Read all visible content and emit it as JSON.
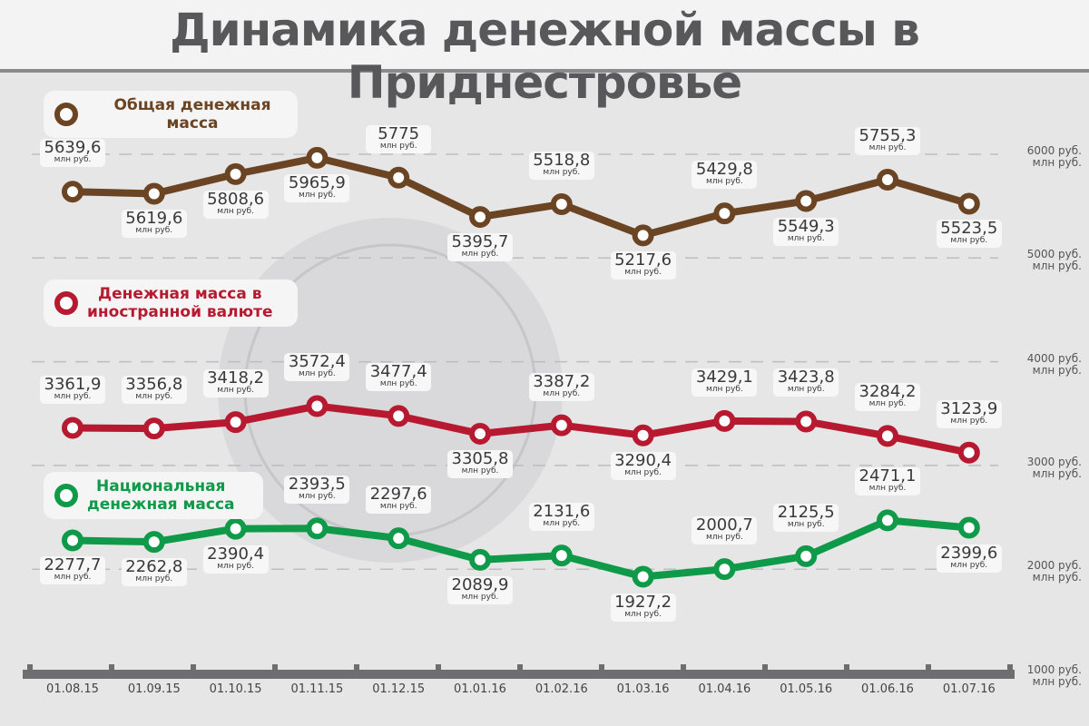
{
  "title": "Динамика денежной массы в Приднестровье",
  "chart_data": {
    "type": "line",
    "title": "Динамика денежной массы в Приднестровье",
    "categories": [
      "01.08.15",
      "01.09.15",
      "01.10.15",
      "01.11.15",
      "01.12.15",
      "01.01.16",
      "01.02.16",
      "01.03.16",
      "01.04.16",
      "01.05.16",
      "01.06.16",
      "01.07.16"
    ],
    "unit": "млн руб.",
    "y_ticks": [
      {
        "value": 1000,
        "label": "1000 руб.",
        "sub": "млн руб."
      },
      {
        "value": 2000,
        "label": "2000 руб.",
        "sub": "млн руб."
      },
      {
        "value": 3000,
        "label": "3000 руб.",
        "sub": "млн руб."
      },
      {
        "value": 4000,
        "label": "4000 руб.",
        "sub": "млн руб."
      },
      {
        "value": 5000,
        "label": "5000 руб.",
        "sub": "млн руб."
      },
      {
        "value": 6000,
        "label": "6000 руб.",
        "sub": "млн руб."
      }
    ],
    "ylim": [
      1000,
      6000
    ],
    "grid": true,
    "series": [
      {
        "name": "Общая денежная масса",
        "color": "#6b4423",
        "values": [
          5639.6,
          5619.6,
          5808.6,
          5965.9,
          5775,
          5395.7,
          5518.8,
          5217.6,
          5429.8,
          5549.3,
          5755.3,
          5523.5
        ],
        "labels": [
          "5639,6",
          "5619,6",
          "5808,6",
          "5965,9",
          "5775",
          "5395,7",
          "5518,8",
          "5217,6",
          "5429,8",
          "5549,3",
          "5755,3",
          "5523,5"
        ]
      },
      {
        "name": "Денежная масса в иностранной валюте",
        "color": "#b71a30",
        "values": [
          3361.9,
          3356.8,
          3418.2,
          3572.4,
          3477.4,
          3305.8,
          3387.2,
          3290.4,
          3429.1,
          3423.8,
          3284.2,
          3123.9
        ],
        "labels": [
          "3361,9",
          "3356,8",
          "3418,2",
          "3572,4",
          "3477,4",
          "3305,8",
          "3387,2",
          "3290,4",
          "3429,1",
          "3423,8",
          "3284,2",
          "3123,9"
        ]
      },
      {
        "name": "Национальная денежная масса",
        "color": "#0e9a48",
        "values": [
          2277.7,
          2262.8,
          2390.4,
          2393.5,
          2297.6,
          2089.9,
          2131.6,
          1927.2,
          2000.7,
          2125.5,
          2471.1,
          2399.6
        ],
        "labels": [
          "2277,7",
          "2262,8",
          "2390,4",
          "2393,5",
          "2297,6",
          "2089,9",
          "2131,6",
          "1927,2",
          "2000,7",
          "2125,5",
          "2471,1",
          "2399,6"
        ]
      }
    ]
  },
  "legend": {
    "brown": "Общая денежная масса",
    "red_1": "Денежная масса в",
    "red_2": "иностранной валюте",
    "green_1": "Национальная",
    "green_2": "денежная масса"
  }
}
